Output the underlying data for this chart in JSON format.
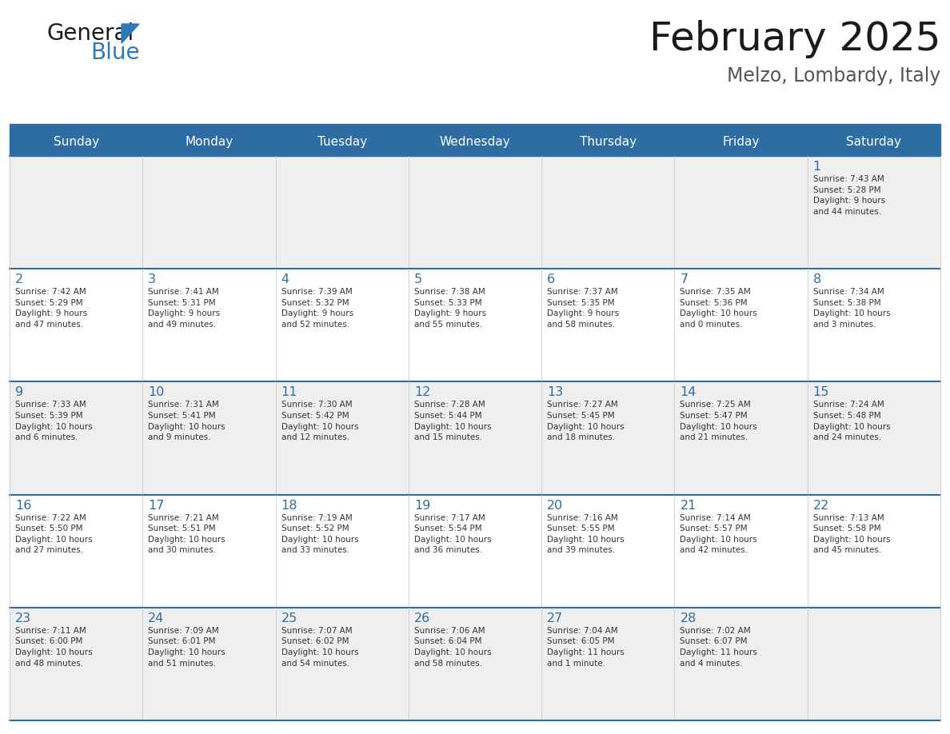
{
  "title": "February 2025",
  "subtitle": "Melzo, Lombardy, Italy",
  "days_of_week": [
    "Sunday",
    "Monday",
    "Tuesday",
    "Wednesday",
    "Thursday",
    "Friday",
    "Saturday"
  ],
  "header_bg": "#2E6DA4",
  "header_text": "#FFFFFF",
  "row_bg_colors": [
    "#EFEFEF",
    "#FFFFFF",
    "#EFEFEF",
    "#FFFFFF",
    "#EFEFEF"
  ],
  "row_separator_color": "#2E6DA4",
  "col_separator_color": "#CCCCCC",
  "outer_border_color": "#2E6DA4",
  "day_num_color": "#2E6DA4",
  "info_color": "#333333",
  "title_color": "#1a1a1a",
  "subtitle_color": "#555555",
  "logo_general_color": "#1a1a1a",
  "logo_blue_color": "#2E79B9",
  "calendar_data": [
    [
      null,
      null,
      null,
      null,
      null,
      null,
      {
        "day": "1",
        "sunrise": "7:43 AM",
        "sunset": "5:28 PM",
        "daylight": "9 hours\nand 44 minutes."
      }
    ],
    [
      {
        "day": "2",
        "sunrise": "7:42 AM",
        "sunset": "5:29 PM",
        "daylight": "9 hours\nand 47 minutes."
      },
      {
        "day": "3",
        "sunrise": "7:41 AM",
        "sunset": "5:31 PM",
        "daylight": "9 hours\nand 49 minutes."
      },
      {
        "day": "4",
        "sunrise": "7:39 AM",
        "sunset": "5:32 PM",
        "daylight": "9 hours\nand 52 minutes."
      },
      {
        "day": "5",
        "sunrise": "7:38 AM",
        "sunset": "5:33 PM",
        "daylight": "9 hours\nand 55 minutes."
      },
      {
        "day": "6",
        "sunrise": "7:37 AM",
        "sunset": "5:35 PM",
        "daylight": "9 hours\nand 58 minutes."
      },
      {
        "day": "7",
        "sunrise": "7:35 AM",
        "sunset": "5:36 PM",
        "daylight": "10 hours\nand 0 minutes."
      },
      {
        "day": "8",
        "sunrise": "7:34 AM",
        "sunset": "5:38 PM",
        "daylight": "10 hours\nand 3 minutes."
      }
    ],
    [
      {
        "day": "9",
        "sunrise": "7:33 AM",
        "sunset": "5:39 PM",
        "daylight": "10 hours\nand 6 minutes."
      },
      {
        "day": "10",
        "sunrise": "7:31 AM",
        "sunset": "5:41 PM",
        "daylight": "10 hours\nand 9 minutes."
      },
      {
        "day": "11",
        "sunrise": "7:30 AM",
        "sunset": "5:42 PM",
        "daylight": "10 hours\nand 12 minutes."
      },
      {
        "day": "12",
        "sunrise": "7:28 AM",
        "sunset": "5:44 PM",
        "daylight": "10 hours\nand 15 minutes."
      },
      {
        "day": "13",
        "sunrise": "7:27 AM",
        "sunset": "5:45 PM",
        "daylight": "10 hours\nand 18 minutes."
      },
      {
        "day": "14",
        "sunrise": "7:25 AM",
        "sunset": "5:47 PM",
        "daylight": "10 hours\nand 21 minutes."
      },
      {
        "day": "15",
        "sunrise": "7:24 AM",
        "sunset": "5:48 PM",
        "daylight": "10 hours\nand 24 minutes."
      }
    ],
    [
      {
        "day": "16",
        "sunrise": "7:22 AM",
        "sunset": "5:50 PM",
        "daylight": "10 hours\nand 27 minutes."
      },
      {
        "day": "17",
        "sunrise": "7:21 AM",
        "sunset": "5:51 PM",
        "daylight": "10 hours\nand 30 minutes."
      },
      {
        "day": "18",
        "sunrise": "7:19 AM",
        "sunset": "5:52 PM",
        "daylight": "10 hours\nand 33 minutes."
      },
      {
        "day": "19",
        "sunrise": "7:17 AM",
        "sunset": "5:54 PM",
        "daylight": "10 hours\nand 36 minutes."
      },
      {
        "day": "20",
        "sunrise": "7:16 AM",
        "sunset": "5:55 PM",
        "daylight": "10 hours\nand 39 minutes."
      },
      {
        "day": "21",
        "sunrise": "7:14 AM",
        "sunset": "5:57 PM",
        "daylight": "10 hours\nand 42 minutes."
      },
      {
        "day": "22",
        "sunrise": "7:13 AM",
        "sunset": "5:58 PM",
        "daylight": "10 hours\nand 45 minutes."
      }
    ],
    [
      {
        "day": "23",
        "sunrise": "7:11 AM",
        "sunset": "6:00 PM",
        "daylight": "10 hours\nand 48 minutes."
      },
      {
        "day": "24",
        "sunrise": "7:09 AM",
        "sunset": "6:01 PM",
        "daylight": "10 hours\nand 51 minutes."
      },
      {
        "day": "25",
        "sunrise": "7:07 AM",
        "sunset": "6:02 PM",
        "daylight": "10 hours\nand 54 minutes."
      },
      {
        "day": "26",
        "sunrise": "7:06 AM",
        "sunset": "6:04 PM",
        "daylight": "10 hours\nand 58 minutes."
      },
      {
        "day": "27",
        "sunrise": "7:04 AM",
        "sunset": "6:05 PM",
        "daylight": "11 hours\nand 1 minute."
      },
      {
        "day": "28",
        "sunrise": "7:02 AM",
        "sunset": "6:07 PM",
        "daylight": "11 hours\nand 4 minutes."
      },
      null
    ]
  ]
}
